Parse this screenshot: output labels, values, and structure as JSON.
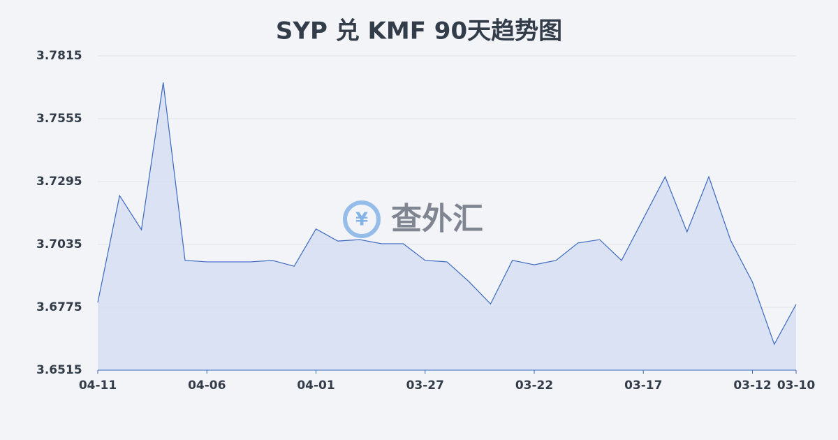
{
  "chart_data": {
    "type": "line",
    "title": "SYP 兑 KMF 90天趋势图",
    "watermark": "查外汇",
    "categories": [
      "04-11",
      null,
      null,
      null,
      null,
      "04-06",
      null,
      null,
      null,
      null,
      "04-01",
      null,
      null,
      null,
      null,
      "03-27",
      null,
      null,
      null,
      null,
      "03-22",
      null,
      null,
      null,
      null,
      "03-17",
      null,
      null,
      null,
      null,
      "03-12",
      null,
      "03-10"
    ],
    "series": [
      {
        "name": "SYP/KMF",
        "color": "#3a68bf",
        "values": [
          3.6795,
          3.7237,
          3.7096,
          3.7705,
          3.6969,
          3.6963,
          3.6963,
          3.6963,
          3.6969,
          3.6945,
          3.7099,
          3.7049,
          3.7055,
          3.7038,
          3.7038,
          3.6969,
          3.6963,
          3.6882,
          3.6789,
          3.6969,
          3.6951,
          3.6969,
          3.7041,
          3.7055,
          3.6969,
          3.7142,
          3.7315,
          3.7087,
          3.7315,
          3.7052,
          3.6879,
          3.6622,
          3.6787
        ]
      }
    ],
    "fill": "#d3ddf3",
    "ylim": [
      3.6515,
      3.7815
    ],
    "yticks": [
      3.6515,
      3.6775,
      3.7035,
      3.7295,
      3.7555,
      3.7815
    ],
    "grid": true
  }
}
